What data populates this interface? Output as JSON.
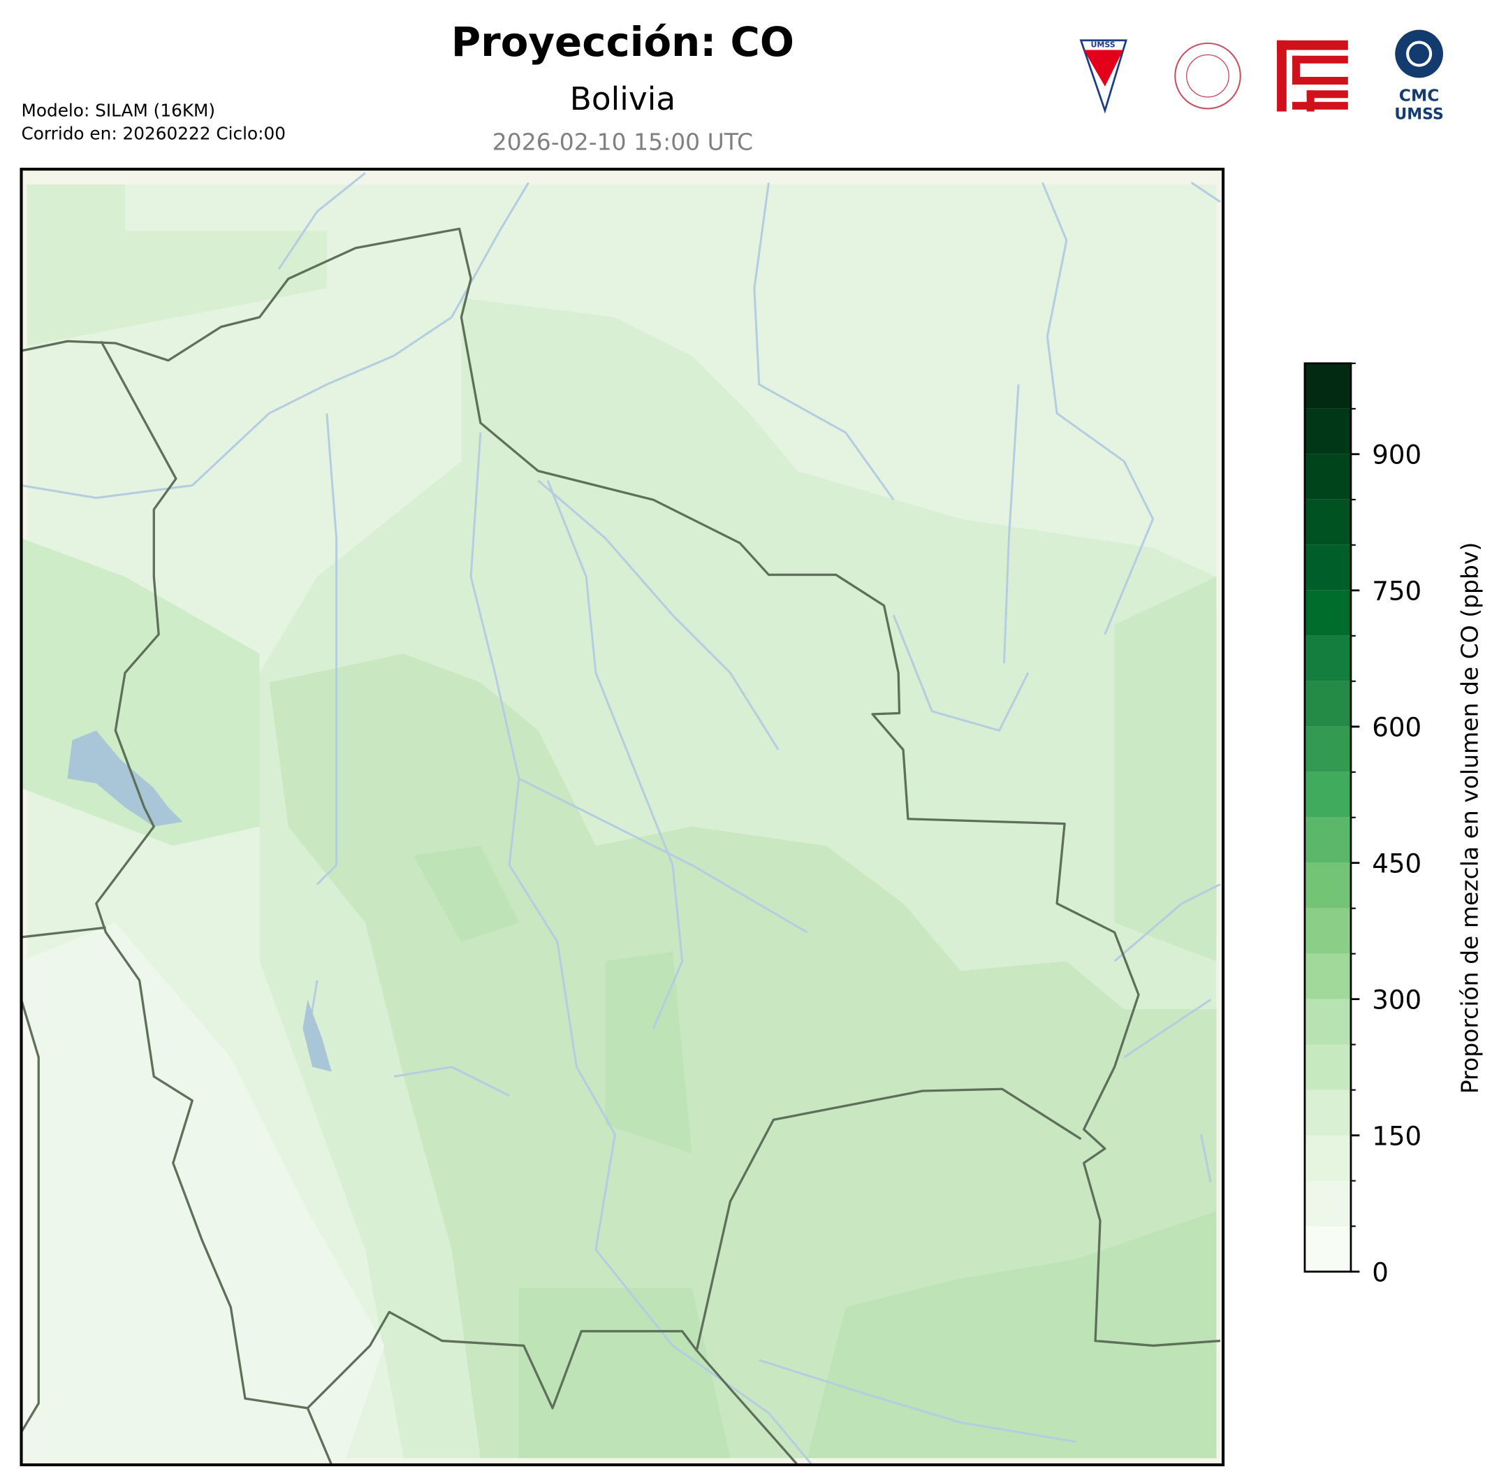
{
  "header": {
    "title": "Proyección: CO",
    "subtitle": "Bolivia",
    "datetime": "2026-02-10 15:00 UTC",
    "model": "Modelo: SILAM (16KM)",
    "run": "Corrido en: 20260222 Ciclo:00"
  },
  "logos": {
    "umss": "UMSS",
    "cmc": "CMC",
    "cmc_sub": "UMSS"
  },
  "colorbar": {
    "label": "Proporción de mezcla en volumen de CO (ppbv)",
    "lim": [
      0,
      1000
    ],
    "ticks": [
      0,
      150,
      300,
      450,
      600,
      750,
      900
    ],
    "levels": [
      0,
      50,
      100,
      150,
      200,
      250,
      300,
      350,
      400,
      450,
      500,
      550,
      600,
      650,
      700,
      750,
      800,
      850,
      900,
      950,
      1000
    ],
    "colors": [
      "#f7fcf5",
      "#eef8ea",
      "#e5f5e0",
      "#d9f0d3",
      "#c7e9c0",
      "#b7e2b1",
      "#a1d99b",
      "#8ace88",
      "#74c476",
      "#5bb86a",
      "#41ab5d",
      "#329b51",
      "#238b45",
      "#137e3d",
      "#006d2c",
      "#005f28",
      "#005221",
      "#00441b",
      "#003716",
      "#002a11"
    ]
  }
}
